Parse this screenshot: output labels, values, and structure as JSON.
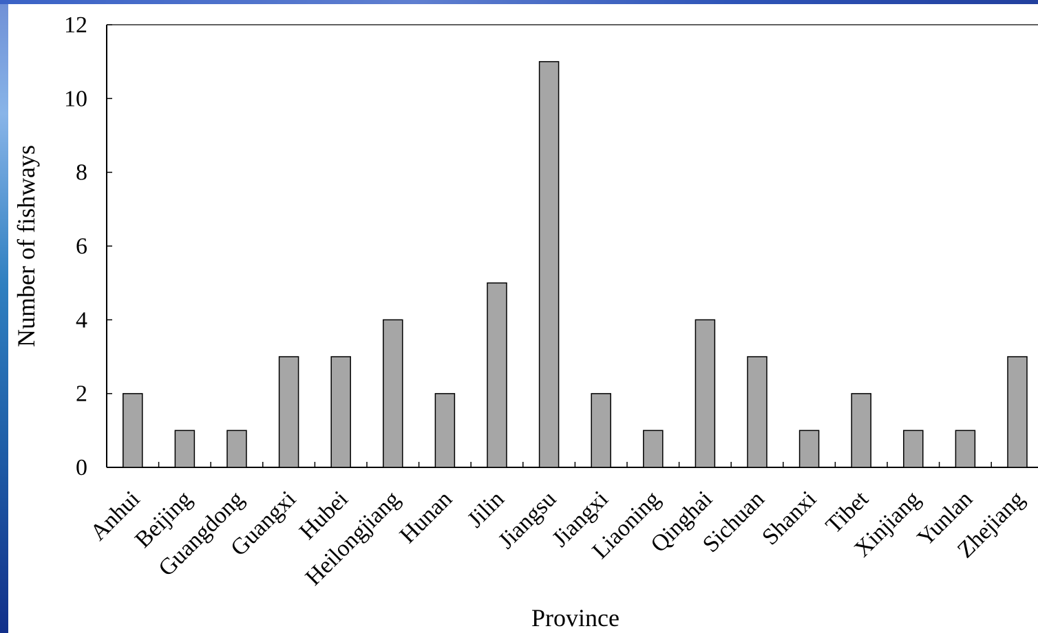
{
  "chart_data": {
    "type": "bar",
    "xlabel": "Province",
    "ylabel": "Number of fishways",
    "ylim": [
      0,
      12
    ],
    "yticks": [
      0,
      2,
      4,
      6,
      8,
      10,
      12
    ],
    "categories": [
      "Anhui",
      "Beijing",
      "Guangdong",
      "Guangxi",
      "Hubei",
      "Heilongjiang",
      "Hunan",
      "Jilin",
      "Jiangsu",
      "Jiangxi",
      "Liaoning",
      "Qinghai",
      "Sichuan",
      "Shanxi",
      "Tibet",
      "Xinjiang",
      "Yunlan",
      "Zhejiang"
    ],
    "values": [
      2,
      1,
      1,
      3,
      3,
      4,
      2,
      5,
      11,
      2,
      1,
      4,
      3,
      1,
      2,
      1,
      1,
      3
    ],
    "bar_color": "#a6a6a6",
    "grid": false
  }
}
